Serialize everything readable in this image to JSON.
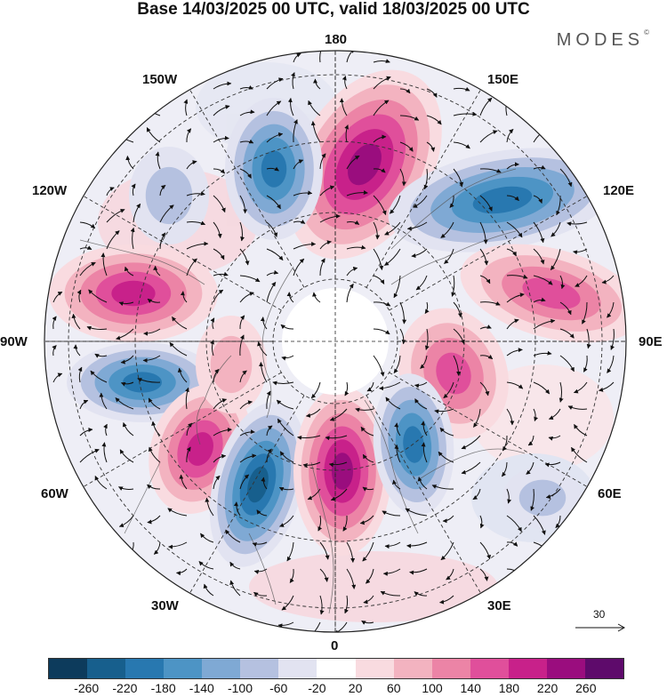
{
  "title": "Base 14/03/2025 00 UTC, valid 18/03/2025 00 UTC",
  "brand": "MODES",
  "brand_mark": "©",
  "longitude_labels": {
    "top": "180",
    "bottom": "0",
    "left": "90W",
    "right": "90E",
    "w150": "150W",
    "e150": "150E",
    "w120": "120W",
    "e120": "120E",
    "w60": "60W",
    "e60": "60E",
    "w30": "30W",
    "e30": "30E"
  },
  "vector_scale": {
    "value": "30"
  },
  "colorbar": {
    "colors": [
      "#0d3b5c",
      "#175f8d",
      "#2878b0",
      "#4d94c5",
      "#7fa9d4",
      "#b5c1e0",
      "#e2e3f1",
      "#ffffff",
      "#f9dbe0",
      "#f3b3c0",
      "#ec84a6",
      "#e04f9b",
      "#c8218a",
      "#9a0d7e",
      "#5e0a6b"
    ],
    "ticks": [
      "-260",
      "-220",
      "-180",
      "-140",
      "-100",
      "-60",
      "-20",
      "20",
      "60",
      "100",
      "140",
      "180",
      "220",
      "260"
    ]
  }
}
